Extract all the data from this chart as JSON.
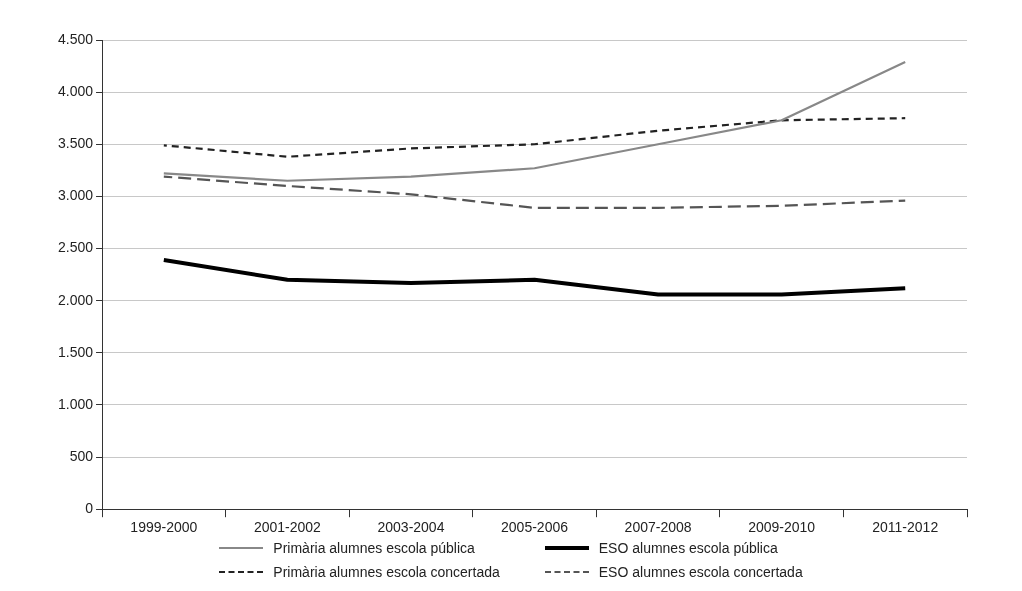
{
  "chart_data": {
    "type": "line",
    "categories": [
      "1999-2000",
      "2001-2002",
      "2003-2004",
      "2005-2006",
      "2007-2008",
      "2009-2010",
      "2011-2012"
    ],
    "series": [
      {
        "name": "Primària alumnes escola pública",
        "color": "#888888",
        "line_style": "solid",
        "values": [
          3220,
          3150,
          3190,
          3270,
          3500,
          3730,
          4290
        ]
      },
      {
        "name": "ESO alumnes escola pública",
        "color": "#000000",
        "line_style": "solid",
        "values": [
          2390,
          2200,
          2170,
          2200,
          2060,
          2060,
          2120
        ]
      },
      {
        "name": "Primària alumnes escola concertada",
        "color": "#222222",
        "line_style": "dashed",
        "values": [
          3490,
          3380,
          3460,
          3500,
          3630,
          3730,
          3750
        ]
      },
      {
        "name": "ESO alumnes escola concertada",
        "color": "#555555",
        "line_style": "dashed",
        "values": [
          3190,
          3100,
          3020,
          2890,
          2890,
          2910,
          2960
        ]
      }
    ],
    "ylim": [
      0,
      4500
    ],
    "yticks": [
      0,
      {
        "value": 500,
        "label": "500"
      },
      {
        "value": 1000,
        "label": "1.000"
      },
      {
        "value": 1500,
        "label": "1.500"
      },
      {
        "value": 2000,
        "label": "2.000"
      },
      {
        "value": 2500,
        "label": "2.500"
      },
      {
        "value": 3000,
        "label": "3.000"
      },
      {
        "value": 3500,
        "label": "3.500"
      },
      {
        "value": 4000,
        "label": "4.000"
      },
      {
        "value": 4500,
        "label": "4.500"
      }
    ],
    "grid": "y",
    "legend": "bottom",
    "marker": "none"
  }
}
